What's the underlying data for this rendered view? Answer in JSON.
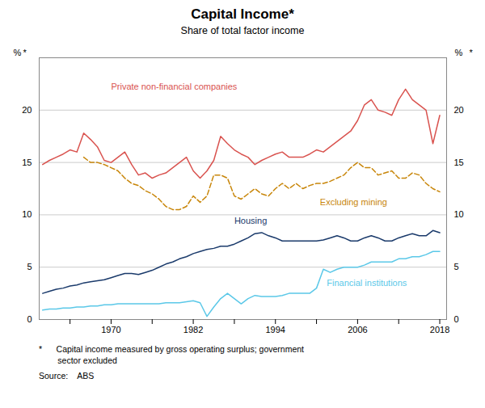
{
  "chart_data": {
    "type": "line",
    "title": "Capital Income*",
    "subtitle": "Share of total factor income",
    "footnotes": [
      "*      Capital income measured by gross operating surplus; government",
      "        sector excluded"
    ],
    "source": "Source:    ABS",
    "ylabel": "%",
    "y2label": "%",
    "xlim": [
      1959.5,
      2019.0
    ],
    "xticks": [
      {
        "value": 1964,
        "label": null
      },
      1970,
      {
        "value": 1976,
        "label": null
      },
      1982,
      {
        "value": 1988,
        "label": null
      },
      1994,
      {
        "value": 2000,
        "label": null
      },
      2006,
      {
        "value": 2012,
        "label": null
      },
      2018
    ],
    "ylim": [
      0,
      25
    ],
    "yticks": [
      0,
      5,
      10,
      15,
      20
    ],
    "y2lim": [
      0,
      25
    ],
    "y2ticks": [
      0,
      5,
      10,
      15,
      20
    ],
    "grid": true,
    "series": [
      {
        "name": "Private non-financial companies",
        "color": "#d9534f",
        "line_style": "solid",
        "x": [
          1960,
          1961,
          1962,
          1963,
          1964,
          1965,
          1966,
          1967,
          1968,
          1969,
          1970,
          1971,
          1972,
          1973,
          1974,
          1975,
          1976,
          1977,
          1978,
          1979,
          1980,
          1981,
          1982,
          1983,
          1984,
          1985,
          1986,
          1987,
          1988,
          1989,
          1990,
          1991,
          1992,
          1993,
          1994,
          1995,
          1996,
          1997,
          1998,
          1999,
          2000,
          2001,
          2002,
          2003,
          2004,
          2005,
          2006,
          2007,
          2008,
          2009,
          2010,
          2011,
          2012,
          2013,
          2014,
          2015,
          2016,
          2017,
          2018
        ],
        "values": [
          14.8,
          15.2,
          15.5,
          15.8,
          16.2,
          16.0,
          17.8,
          17.2,
          16.5,
          15.2,
          15.0,
          15.5,
          16.0,
          14.8,
          13.8,
          14.0,
          13.5,
          13.8,
          14.0,
          14.5,
          15.0,
          15.5,
          14.2,
          13.5,
          14.2,
          15.2,
          17.5,
          16.8,
          16.2,
          15.8,
          15.5,
          14.8,
          15.2,
          15.5,
          15.8,
          16.0,
          15.5,
          15.5,
          15.5,
          15.8,
          16.2,
          16.0,
          16.5,
          17.0,
          17.5,
          18.0,
          19.0,
          20.5,
          21.0,
          20.0,
          19.8,
          19.5,
          21.0,
          22.0,
          21.0,
          20.5,
          20.0,
          16.8,
          19.5
        ]
      },
      {
        "name": "Excluding mining",
        "color": "#c8860a",
        "line_style": "dashed",
        "x": [
          1966,
          1967,
          1968,
          1969,
          1970,
          1971,
          1972,
          1973,
          1974,
          1975,
          1976,
          1977,
          1978,
          1979,
          1980,
          1981,
          1982,
          1983,
          1984,
          1985,
          1986,
          1987,
          1988,
          1989,
          1990,
          1991,
          1992,
          1993,
          1994,
          1995,
          1996,
          1997,
          1998,
          1999,
          2000,
          2001,
          2002,
          2003,
          2004,
          2005,
          2006,
          2007,
          2008,
          2009,
          2010,
          2011,
          2012,
          2013,
          2014,
          2015,
          2016,
          2017,
          2018
        ],
        "values": [
          15.5,
          15.0,
          15.0,
          14.8,
          14.5,
          14.2,
          13.5,
          13.0,
          12.8,
          12.3,
          12.0,
          11.5,
          10.8,
          10.5,
          10.5,
          10.8,
          11.8,
          11.2,
          11.8,
          13.8,
          13.8,
          13.5,
          11.8,
          11.5,
          12.0,
          12.5,
          12.0,
          11.8,
          12.5,
          13.0,
          12.5,
          13.0,
          12.5,
          12.8,
          13.0,
          13.0,
          13.2,
          13.5,
          13.8,
          14.5,
          15.0,
          14.5,
          14.5,
          13.8,
          14.0,
          14.2,
          13.5,
          13.5,
          14.0,
          13.8,
          13.0,
          12.5,
          12.2
        ]
      },
      {
        "name": "Housing",
        "color": "#1a3a6b",
        "line_style": "solid",
        "x": [
          1960,
          1961,
          1962,
          1963,
          1964,
          1965,
          1966,
          1967,
          1968,
          1969,
          1970,
          1971,
          1972,
          1973,
          1974,
          1975,
          1976,
          1977,
          1978,
          1979,
          1980,
          1981,
          1982,
          1983,
          1984,
          1985,
          1986,
          1987,
          1988,
          1989,
          1990,
          1991,
          1992,
          1993,
          1994,
          1995,
          1996,
          1997,
          1998,
          1999,
          2000,
          2001,
          2002,
          2003,
          2004,
          2005,
          2006,
          2007,
          2008,
          2009,
          2010,
          2011,
          2012,
          2013,
          2014,
          2015,
          2016,
          2017,
          2018
        ],
        "values": [
          2.5,
          2.7,
          2.9,
          3.0,
          3.2,
          3.3,
          3.5,
          3.6,
          3.7,
          3.8,
          4.0,
          4.2,
          4.4,
          4.4,
          4.3,
          4.5,
          4.7,
          5.0,
          5.3,
          5.5,
          5.8,
          6.0,
          6.3,
          6.5,
          6.7,
          6.8,
          7.0,
          7.0,
          7.2,
          7.5,
          7.8,
          8.2,
          8.3,
          8.0,
          7.8,
          7.5,
          7.5,
          7.5,
          7.5,
          7.5,
          7.5,
          7.6,
          7.8,
          8.0,
          7.8,
          7.5,
          7.5,
          7.8,
          8.0,
          7.8,
          7.5,
          7.5,
          7.8,
          8.0,
          8.2,
          8.0,
          8.0,
          8.5,
          8.3
        ]
      },
      {
        "name": "Financial institutions",
        "color": "#5bc8e8",
        "line_style": "solid",
        "x": [
          1960,
          1961,
          1962,
          1963,
          1964,
          1965,
          1966,
          1967,
          1968,
          1969,
          1970,
          1971,
          1972,
          1973,
          1974,
          1975,
          1976,
          1977,
          1978,
          1979,
          1980,
          1981,
          1982,
          1983,
          1984,
          1985,
          1986,
          1987,
          1988,
          1989,
          1990,
          1991,
          1992,
          1993,
          1994,
          1995,
          1996,
          1997,
          1998,
          1999,
          2000,
          2001,
          2002,
          2003,
          2004,
          2005,
          2006,
          2007,
          2008,
          2009,
          2010,
          2011,
          2012,
          2013,
          2014,
          2015,
          2016,
          2017,
          2018
        ],
        "values": [
          0.9,
          1.0,
          1.0,
          1.1,
          1.1,
          1.2,
          1.2,
          1.3,
          1.3,
          1.4,
          1.4,
          1.5,
          1.5,
          1.5,
          1.5,
          1.5,
          1.5,
          1.5,
          1.6,
          1.6,
          1.6,
          1.7,
          1.8,
          1.6,
          0.3,
          1.2,
          2.0,
          2.5,
          2.0,
          1.5,
          2.0,
          2.3,
          2.2,
          2.2,
          2.2,
          2.3,
          2.5,
          2.5,
          2.5,
          2.5,
          3.0,
          4.8,
          4.5,
          4.8,
          5.0,
          5.0,
          5.0,
          5.2,
          5.5,
          5.5,
          5.5,
          5.5,
          5.8,
          5.8,
          6.0,
          6.0,
          6.2,
          6.5,
          6.5
        ]
      }
    ],
    "annotations": [
      {
        "text": "Private non-financial companies",
        "x": 1970,
        "y": 22.2,
        "color": "#d9534f"
      },
      {
        "text": "Excluding mining",
        "x": 2000.5,
        "y": 11.2,
        "color": "#c8860a"
      },
      {
        "text": "Housing",
        "x": 1988,
        "y": 9.4,
        "color": "#1a3a6b"
      },
      {
        "text": "Financial institutions",
        "x": 2001.5,
        "y": 3.5,
        "color": "#5bc8e8"
      },
      {
        "text": "*"
      },
      {
        "text": "*"
      }
    ]
  }
}
